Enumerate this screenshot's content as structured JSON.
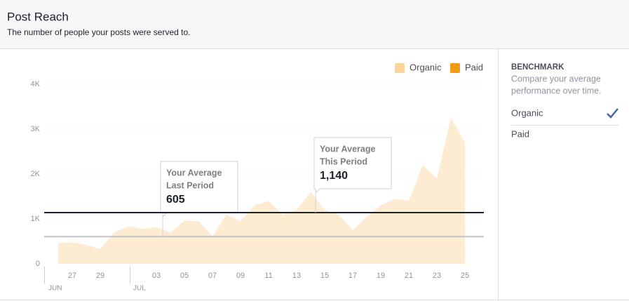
{
  "header": {
    "title": "Post Reach",
    "subtitle": "The number of people your posts were served to."
  },
  "chart_data": {
    "type": "area",
    "categories": [
      null,
      "27",
      null,
      "29",
      null,
      null,
      null,
      "03",
      null,
      "05",
      null,
      "07",
      null,
      "09",
      null,
      "11",
      null,
      "13",
      null,
      "15",
      null,
      "17",
      null,
      "19",
      null,
      "21",
      null,
      "23",
      null,
      "25"
    ],
    "months": [
      "JUN",
      "JUL"
    ],
    "series": [
      {
        "name": "Organic",
        "color": "#fdd49c",
        "values": [
          460,
          480,
          420,
          330,
          700,
          840,
          780,
          820,
          700,
          960,
          950,
          620,
          1100,
          950,
          1300,
          1400,
          1100,
          1200,
          1600,
          1200,
          1100,
          750,
          1050,
          1300,
          1450,
          1400,
          2200,
          1900,
          3250,
          2700
        ]
      },
      {
        "name": "Paid",
        "color": "#f29a12"
      }
    ],
    "ylim": [
      0,
      4000
    ],
    "yticks": [
      0,
      {
        "value": 1000,
        "label": "1K"
      },
      {
        "value": 2000,
        "label": "2K"
      },
      {
        "value": 3000,
        "label": "3K"
      },
      {
        "value": 4000,
        "label": "4K"
      }
    ],
    "grid": true,
    "legend": "top-right",
    "annotations": [
      {
        "text": [
          "Your Average",
          "Last Period"
        ],
        "value": 605,
        "color": "#bec2c9"
      },
      {
        "text": [
          "Your Average",
          "This Period"
        ],
        "value": 1140,
        "value_label": "1,140",
        "color": "#1d2129"
      }
    ]
  },
  "benchmark": {
    "title": "BENCHMARK",
    "description": [
      "Compare your average",
      "performance over time."
    ],
    "options": [
      "Organic",
      "Paid"
    ]
  }
}
